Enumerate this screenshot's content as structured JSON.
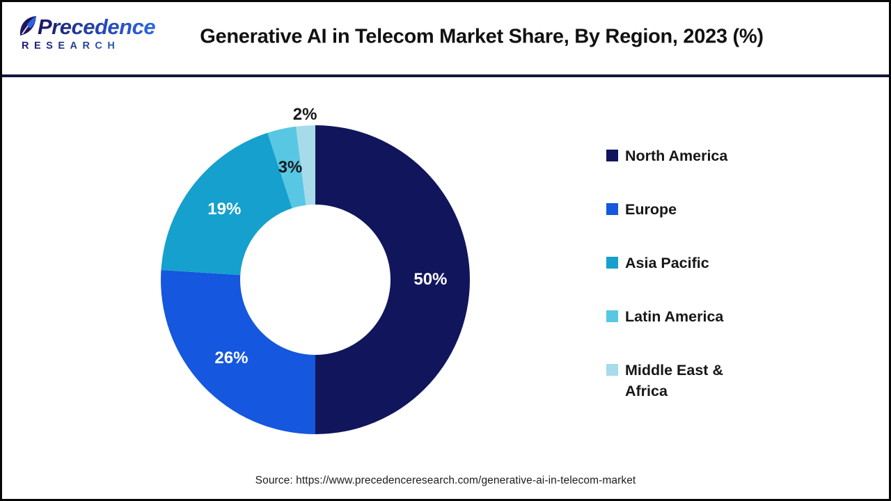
{
  "header": {
    "logo": {
      "brand": "Precedence",
      "sub": "RESEARCH"
    },
    "title": "Generative AI in Telecom Market Share, By Region, 2023 (%)"
  },
  "chart_data": {
    "type": "pie",
    "donut": true,
    "title": "Generative AI in Telecom Market Share, By Region, 2023 (%)",
    "unit": "%",
    "start_angle_deg": 0,
    "direction": "clockwise",
    "legend_position": "right",
    "categories": [
      "North America",
      "Europe",
      "Asia Pacific",
      "Latin America",
      "Middle East & Africa"
    ],
    "values": [
      50,
      26,
      19,
      3,
      2
    ],
    "labels": [
      "50%",
      "26%",
      "19%",
      "3%",
      "2%"
    ],
    "colors": [
      "#11155c",
      "#1557de",
      "#16a0ce",
      "#58c7e3",
      "#a6dbea"
    ]
  },
  "footer": {
    "source": "Source: https://www.precedenceresearch.com/generative-ai-in-telecom-market"
  }
}
